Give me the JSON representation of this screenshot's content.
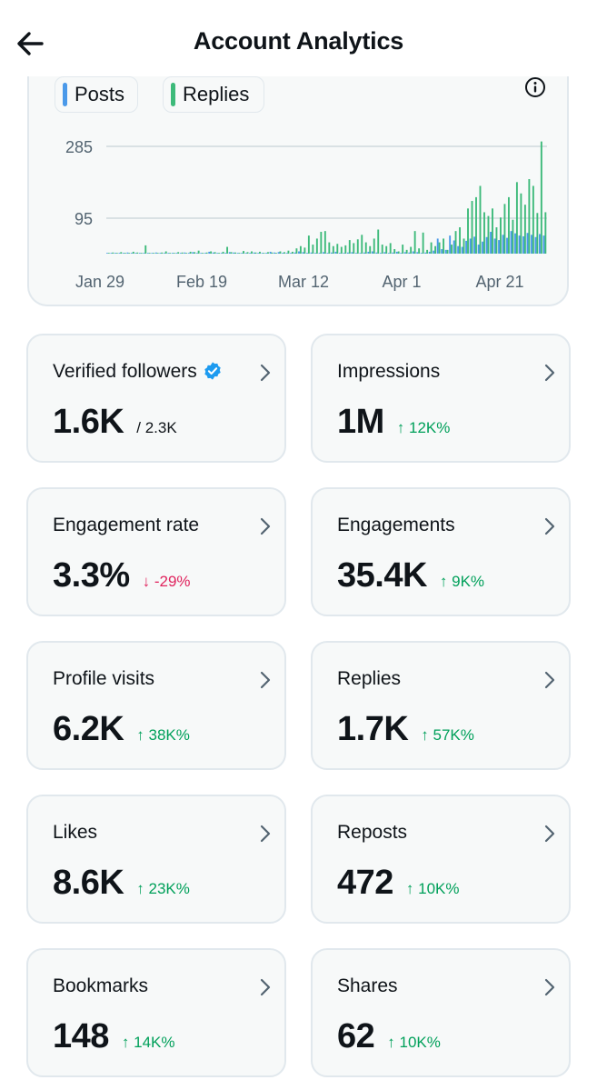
{
  "header": {
    "title": "Account Analytics"
  },
  "chart_data": {
    "type": "bar",
    "legend": [
      {
        "name": "Posts",
        "color": "#4a99e9"
      },
      {
        "name": "Replies",
        "color": "#3dba7a"
      }
    ],
    "y_ticks": [
      "285",
      "95"
    ],
    "x_ticks": [
      "Jan 29",
      "Feb 19",
      "Mar 12",
      "Apr 1",
      "Apr 21"
    ],
    "ylim": [
      0,
      330
    ],
    "grid": true,
    "series": [
      {
        "name": "Posts",
        "values": [
          0,
          1,
          2,
          0,
          1,
          3,
          2,
          1,
          0,
          2,
          1,
          0,
          3,
          2,
          1,
          0,
          2,
          1,
          0,
          3,
          2,
          4,
          1,
          0,
          2,
          5,
          3,
          1,
          0,
          2,
          4,
          3,
          2,
          1,
          0,
          2,
          3,
          1,
          0,
          2,
          5,
          3,
          4,
          2,
          1,
          0,
          3,
          6,
          4,
          2,
          3,
          1,
          0,
          4,
          2,
          3,
          5,
          2,
          1,
          3,
          4,
          2,
          0,
          3,
          5,
          6,
          3,
          2,
          4,
          1,
          3,
          5,
          2,
          4,
          3,
          6,
          4,
          2,
          3,
          5,
          8,
          40,
          12,
          10,
          48,
          35,
          20,
          18,
          34,
          40,
          45,
          24,
          32,
          44,
          58,
          40,
          36,
          50,
          42,
          60,
          54,
          48,
          46,
          55,
          50,
          44,
          52,
          48
        ]
      },
      {
        "name": "Replies",
        "values": [
          1,
          3,
          0,
          4,
          2,
          0,
          5,
          3,
          0,
          22,
          1,
          2,
          0,
          3,
          6,
          0,
          2,
          4,
          3,
          0,
          5,
          4,
          8,
          2,
          3,
          6,
          4,
          2,
          5,
          18,
          4,
          3,
          2,
          7,
          4,
          6,
          3,
          5,
          2,
          4,
          3,
          2,
          6,
          4,
          8,
          5,
          14,
          20,
          16,
          48,
          24,
          40,
          58,
          60,
          30,
          20,
          26,
          18,
          22,
          36,
          28,
          38,
          50,
          30,
          20,
          40,
          64,
          24,
          20,
          28,
          12,
          6,
          24,
          10,
          18,
          60,
          14,
          56,
          10,
          30,
          20,
          30,
          40,
          10,
          24,
          60,
          70,
          40,
          120,
          140,
          150,
          180,
          110,
          100,
          120,
          70,
          96,
          132,
          150,
          90,
          190,
          160,
          130,
          198,
          180,
          108,
          298,
          110
        ]
      }
    ]
  },
  "metrics": [
    {
      "label": "Verified followers",
      "value": "1.6K",
      "change": "/ 2.3K",
      "direction": "neutral",
      "verified": true
    },
    {
      "label": "Impressions",
      "value": "1M",
      "change": "↑ 12K%",
      "direction": "up"
    },
    {
      "label": "Engagement rate",
      "value": "3.3%",
      "change": "↓ -29%",
      "direction": "down"
    },
    {
      "label": "Engagements",
      "value": "35.4K",
      "change": "↑ 9K%",
      "direction": "up"
    },
    {
      "label": "Profile visits",
      "value": "6.2K",
      "change": "↑ 38K%",
      "direction": "up"
    },
    {
      "label": "Replies",
      "value": "1.7K",
      "change": "↑ 57K%",
      "direction": "up"
    },
    {
      "label": "Likes",
      "value": "8.6K",
      "change": "↑ 23K%",
      "direction": "up"
    },
    {
      "label": "Reposts",
      "value": "472",
      "change": "↑ 10K%",
      "direction": "up"
    },
    {
      "label": "Bookmarks",
      "value": "148",
      "change": "↑ 14K%",
      "direction": "up"
    },
    {
      "label": "Shares",
      "value": "62",
      "change": "↑ 10K%",
      "direction": "up"
    }
  ]
}
